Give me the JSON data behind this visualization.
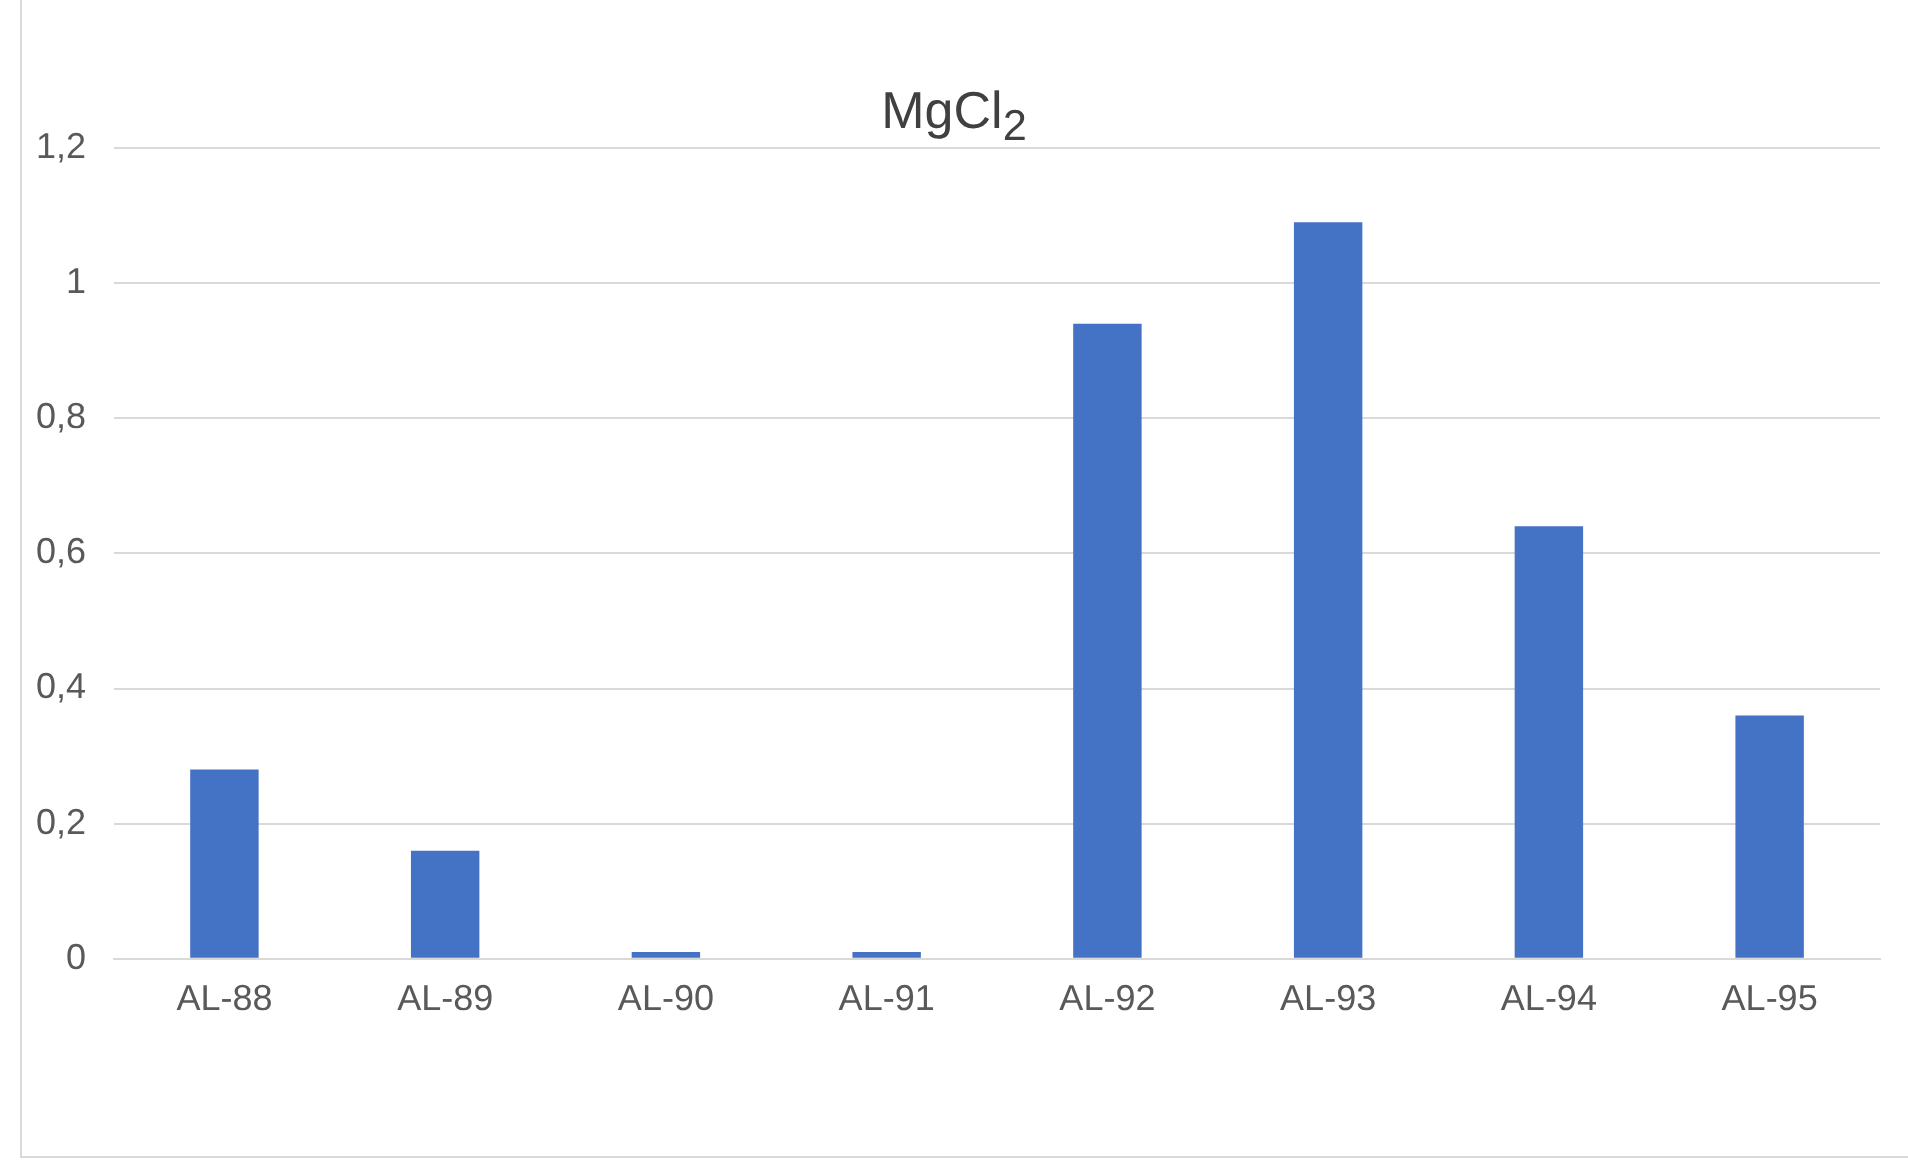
{
  "chart_data": {
    "type": "bar",
    "title": "MgCl$_{2}$",
    "categories": [
      "AL-88",
      "AL-89",
      "AL-90",
      "AL-91",
      "AL-92",
      "AL-93",
      "AL-94",
      "AL-95"
    ],
    "values": [
      0.28,
      0.16,
      0.01,
      0.01,
      0.94,
      1.09,
      0.64,
      0.36
    ],
    "color": "#4472c4",
    "ylim": [
      0,
      1.2
    ],
    "yticks": [
      0,
      {
        "value": 0.2,
        "label": "0,2"
      },
      {
        "value": 0.4,
        "label": "0,4"
      },
      {
        "value": 0.6,
        "label": "0,6"
      },
      {
        "value": 0.8,
        "label": "0,8"
      },
      1,
      {
        "value": 1.2,
        "label": "1,2"
      }
    ],
    "grid": "y"
  }
}
